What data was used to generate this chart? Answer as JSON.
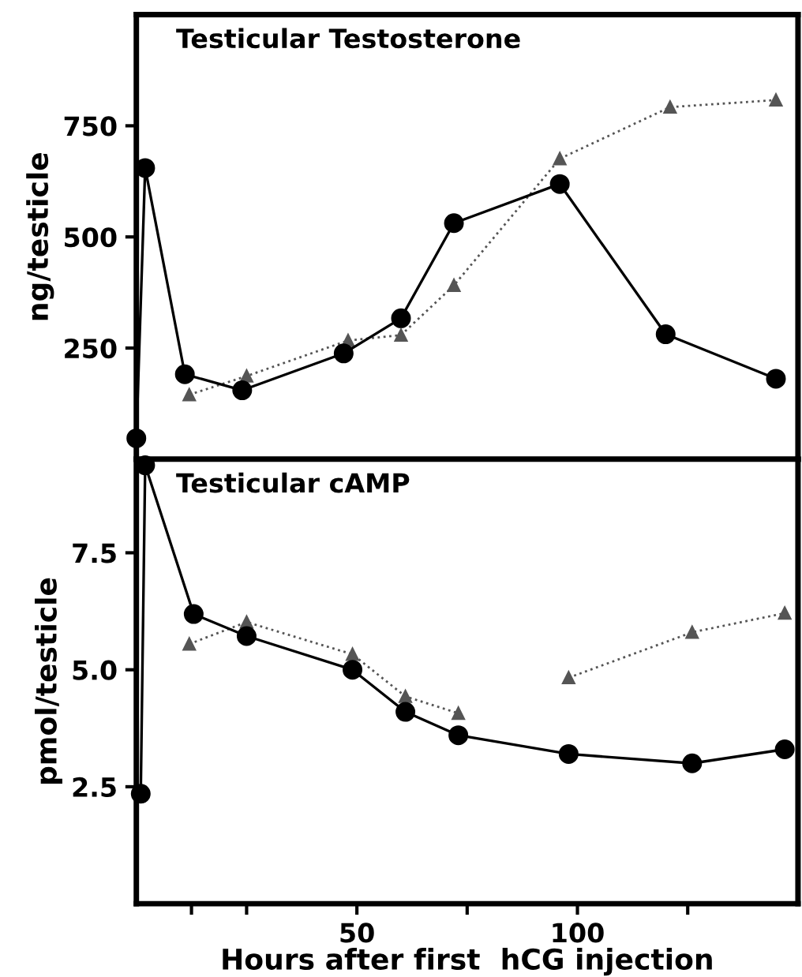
{
  "chart_data": [
    {
      "type": "line",
      "title": "Testicular Testosterone",
      "ylabel": "ng/testicle",
      "xlim": [
        0,
        150
      ],
      "ylim": [
        0,
        1000
      ],
      "xticks": [
        {
          "value": 12.5,
          "label": null
        },
        {
          "value": 25,
          "label": null
        },
        {
          "value": 50,
          "label": null
        },
        {
          "value": 75,
          "label": null
        },
        {
          "value": 100,
          "label": null
        },
        {
          "value": 125,
          "label": null
        }
      ],
      "yticks": [
        250,
        500,
        750
      ],
      "tick_labels": "y",
      "grid": false,
      "legend": false,
      "series": [
        {
          "color": "#000000",
          "marker": "circle",
          "line_style": "solid",
          "x": [
            0,
            2,
            11,
            24,
            47,
            60,
            72,
            96,
            120,
            145
          ],
          "values": [
            47,
            655,
            191,
            155,
            238,
            317,
            531,
            619,
            281,
            181
          ]
        },
        {
          "color": "#555555",
          "marker": "triangle",
          "line_style": "dotted",
          "x": [
            12,
            25,
            48,
            60,
            72,
            96,
            121,
            145
          ],
          "values": [
            145,
            187,
            267,
            279,
            391,
            676,
            792,
            808
          ]
        }
      ]
    },
    {
      "type": "line",
      "title": "Testicular cAMP",
      "xlabel": "Hours after first  hCG injection",
      "ylabel": "pmol/testicle",
      "xlim": [
        0,
        150
      ],
      "ylim": [
        0,
        9.5
      ],
      "xticks": [
        {
          "value": 12.5,
          "label": null
        },
        {
          "value": 25,
          "label": null
        },
        50,
        {
          "value": 75,
          "label": null
        },
        100,
        {
          "value": 125,
          "label": null
        }
      ],
      "yticks": [
        2.5,
        {
          "value": 5,
          "label": "5.0"
        },
        7.5
      ],
      "grid": false,
      "legend": false,
      "series": [
        {
          "color": "#000000",
          "marker": "circle",
          "line_style": "solid",
          "x": [
            1,
            2,
            13,
            25,
            49,
            61,
            73,
            98,
            126,
            147
          ],
          "values": [
            2.35,
            9.37,
            6.19,
            5.72,
            5.0,
            4.1,
            3.6,
            3.2,
            3.0,
            3.3
          ]
        },
        {
          "color": "#555555",
          "marker": "triangle",
          "line_style": "dotted",
          "x": [
            12,
            25,
            49,
            61,
            73,
            85,
            98,
            126,
            147
          ],
          "values": [
            5.55,
            6.02,
            5.33,
            4.43,
            4.07,
            null,
            4.83,
            5.8,
            6.21
          ]
        }
      ]
    }
  ]
}
